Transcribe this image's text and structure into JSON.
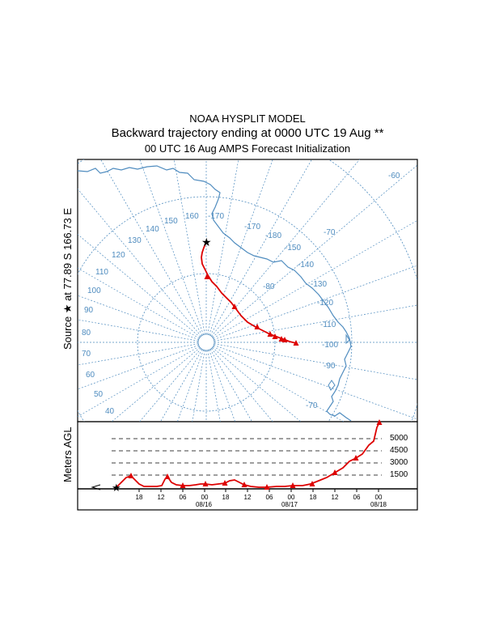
{
  "header": {
    "model": "NOAA HYSPLIT MODEL",
    "title": "Backward trajectory ending at 0000 UTC 19 Aug **",
    "subtitle": "00 UTC 16 Aug    AMPS  Forecast Initialization"
  },
  "map": {
    "source_label": "Source ★ at   77.89 S  166.73 E",
    "longitude_labels": [
      "-60",
      "150",
      "140",
      "130",
      "120",
      "110",
      "100",
      "90",
      "80",
      "70",
      "60",
      "50",
      "40",
      "160",
      "-170",
      "-170",
      "-180",
      "-150",
      "-70",
      "-140",
      "-130",
      "-80",
      "-120",
      "-110",
      "-100",
      "-90",
      "-70"
    ],
    "colors": {
      "grid": "#4f8cbf",
      "coast": "#4f8cbf",
      "trajectory": "#dd0000"
    }
  },
  "profile": {
    "ylabel": "Meters AGL",
    "levels": [
      "5000",
      "4500",
      "3000",
      "1500"
    ],
    "time_ticks": [
      "18",
      "12",
      "06",
      "00",
      "18",
      "12",
      "06",
      "00",
      "18",
      "12",
      "06",
      "00"
    ],
    "dates": [
      "08/16",
      "08/17",
      "08/18"
    ]
  }
}
